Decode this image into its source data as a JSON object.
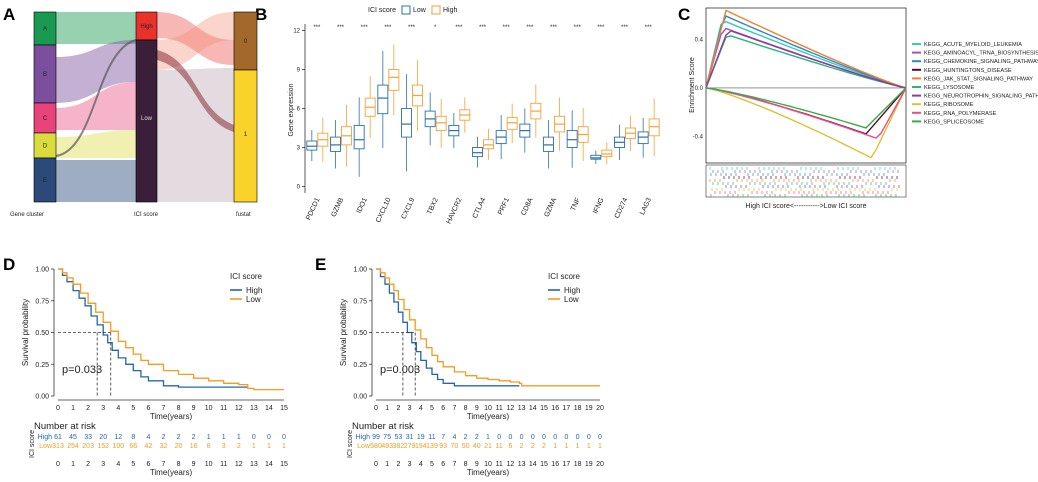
{
  "panels": {
    "a": "A",
    "b": "B",
    "c": "C",
    "d": "D",
    "e": "E"
  },
  "panel_a": {
    "axis_labels": [
      "Gene cluster",
      "ICI score",
      "fustat"
    ],
    "clusters": [
      "A",
      "B",
      "C",
      "D",
      "E"
    ],
    "cluster_colors": [
      "#1a9a50",
      "#7b4f9e",
      "#e8437a",
      "#d9dc3c",
      "#2b4a7a"
    ],
    "ici_levels": [
      "High",
      "Low"
    ],
    "ici_colors": [
      "#e8322a",
      "#3a1f3a"
    ],
    "fustat_levels": [
      "0",
      "1"
    ],
    "fustat_colors": [
      "#a2692a",
      "#f9d32a"
    ]
  },
  "chart_data": [
    {
      "type": "box",
      "panel": "B",
      "legend_title": "ICI score",
      "legend": [
        "Low",
        "High"
      ],
      "series_colors": {
        "Low": "#2b6fb3",
        "High": "#f3a235"
      },
      "ylabel": "Gene expression",
      "yticks": [
        0,
        3,
        6,
        9,
        12
      ],
      "ylim": [
        -0.5,
        12.5
      ],
      "categories": [
        "PDCD1",
        "GZMB",
        "IDO1",
        "CXCL10",
        "CXCL9",
        "TBX2",
        "HAVCR2",
        "CTLA4",
        "PRF1",
        "CD8A",
        "GZMA",
        "TNF",
        "IFNG",
        "CD274",
        "LAG3"
      ],
      "significance": [
        "***",
        "***",
        "***",
        "***",
        "***",
        "*",
        "***",
        "***",
        "***",
        "***",
        "***",
        "***",
        "***",
        "***",
        "***"
      ],
      "low_medians": [
        3.1,
        3.2,
        3.6,
        6.8,
        4.8,
        5.2,
        4.3,
        2.6,
        3.8,
        4.3,
        3.2,
        3.6,
        2.2,
        3.4,
        3.8
      ],
      "low_q1": [
        2.8,
        2.7,
        2.9,
        5.6,
        3.8,
        4.6,
        3.9,
        2.3,
        3.3,
        3.8,
        2.7,
        3.0,
        2.1,
        3.0,
        3.3
      ],
      "low_q3": [
        3.5,
        3.8,
        4.7,
        7.8,
        6.0,
        5.8,
        4.7,
        3.0,
        4.3,
        4.8,
        3.8,
        4.3,
        2.4,
        3.8,
        4.2
      ],
      "high_medians": [
        3.6,
        3.9,
        6.1,
        8.4,
        7.0,
        4.9,
        5.5,
        3.2,
        4.9,
        5.8,
        4.8,
        4.0,
        2.5,
        4.1,
        4.6
      ],
      "high_q1": [
        3.1,
        3.2,
        5.4,
        7.4,
        6.2,
        4.3,
        5.1,
        2.9,
        4.4,
        5.2,
        4.2,
        3.4,
        2.3,
        3.7,
        3.9
      ],
      "high_q3": [
        4.1,
        4.6,
        6.8,
        9.0,
        7.8,
        5.4,
        5.9,
        3.6,
        5.3,
        6.4,
        5.4,
        4.6,
        2.8,
        4.5,
        5.2
      ]
    },
    {
      "type": "line",
      "panel": "C",
      "ylabel": "Enrichment Score",
      "yticks": [
        -0.4,
        0.0,
        0.4
      ],
      "ylim": [
        -0.62,
        0.66
      ],
      "bottom_label": "High ICI score<----------->Low ICI score",
      "series": [
        {
          "name": "KEGG_ACUTE_MYELOID_LEUKEMIA",
          "color": "#3ec6c6",
          "peak": 0.56
        },
        {
          "name": "KEGG_AMINOACYL_TRNA_BIOSYNTHESIS",
          "color": "#9b59b6",
          "peak": 0.5
        },
        {
          "name": "KEGG_CHEMOKINE_SIGNALING_PATHWAY",
          "color": "#2e8bc0",
          "peak": 0.6
        },
        {
          "name": "KEGG_HUNTINGTONS_DISEASE",
          "color": "#5a0a2a",
          "peak": -0.38
        },
        {
          "name": "KEGG_JAK_STAT_SIGNALING_PATHWAY",
          "color": "#f08030",
          "peak": 0.64
        },
        {
          "name": "KEGG_LYSOSOME",
          "color": "#2bb673",
          "peak": 0.44
        },
        {
          "name": "KEGG_NEUROTROPHIN_SIGNALING_PATHWAY",
          "color": "#8e3a9e",
          "peak": 0.48
        },
        {
          "name": "KEGG_RIBOSOME",
          "color": "#d4c43a",
          "peak": -0.58
        },
        {
          "name": "KEGG_RNA_POLYMERASE",
          "color": "#ee4b8a",
          "peak": -0.42
        },
        {
          "name": "KEGG_SPLICEOSOME",
          "color": "#39a94a",
          "peak": -0.33
        }
      ]
    },
    {
      "type": "line",
      "panel": "D",
      "xlabel": "Time(years)",
      "ylabel": "Survival probability",
      "xticks": [
        0,
        1,
        2,
        3,
        4,
        5,
        6,
        7,
        8,
        9,
        10,
        11,
        12,
        13,
        14,
        15
      ],
      "yticks": [
        "0.00",
        "0.25",
        "0.50",
        "0.75",
        "1.00"
      ],
      "xlim": [
        0,
        15
      ],
      "ylim": [
        0,
        1
      ],
      "legend_title": "ICI score",
      "pvalue": "p=0.033",
      "series": [
        {
          "name": "High",
          "color": "#2565ae",
          "x": [
            0,
            0.3,
            0.6,
            1,
            1.4,
            1.8,
            2.2,
            2.6,
            3,
            3.3,
            3.6,
            4,
            4.5,
            5,
            5.5,
            6,
            7,
            8,
            9,
            10,
            11,
            12,
            12.6
          ],
          "y": [
            1,
            0.95,
            0.9,
            0.83,
            0.77,
            0.71,
            0.63,
            0.56,
            0.48,
            0.42,
            0.36,
            0.3,
            0.25,
            0.2,
            0.15,
            0.12,
            0.08,
            0.07,
            0.07,
            0.07,
            0.07,
            0.07,
            0.07
          ]
        },
        {
          "name": "Low",
          "color": "#f39c1f",
          "x": [
            0,
            0.3,
            0.6,
            1,
            1.5,
            2,
            2.5,
            3,
            3.5,
            4,
            4.5,
            5,
            5.5,
            6,
            7,
            8,
            9,
            10,
            11,
            12,
            12.6,
            13,
            15
          ],
          "y": [
            1,
            0.97,
            0.93,
            0.88,
            0.81,
            0.73,
            0.66,
            0.58,
            0.51,
            0.43,
            0.38,
            0.33,
            0.28,
            0.25,
            0.2,
            0.17,
            0.14,
            0.12,
            0.1,
            0.09,
            0.06,
            0.05,
            0.05
          ]
        }
      ],
      "risk_table": {
        "title": "Number at risk",
        "ylabel": "ICI score",
        "rows": [
          {
            "label": "High",
            "color": "#2565ae",
            "values": [
              "61",
              "45",
              "33",
              "20",
              "12",
              "8",
              "4",
              "2",
              "2",
              "2",
              "1",
              "1",
              "1",
              "0",
              "0",
              "0"
            ]
          },
          {
            "label": "Low",
            "color": "#f39c1f",
            "values": [
              "313",
              "254",
              "203",
              "152",
              "100",
              "66",
              "42",
              "32",
              "20",
              "16",
              "8",
              "3",
              "2",
              "1",
              "1",
              "1"
            ]
          }
        ]
      }
    },
    {
      "type": "line",
      "panel": "E",
      "xlabel": "Time(years)",
      "ylabel": "Survival probability",
      "xticks": [
        0,
        1,
        2,
        3,
        4,
        5,
        6,
        7,
        8,
        9,
        10,
        11,
        12,
        13,
        14,
        15,
        16,
        17,
        18,
        19,
        20
      ],
      "yticks": [
        "0.00",
        "0.25",
        "0.50",
        "0.75",
        "1.00"
      ],
      "xlim": [
        0,
        20
      ],
      "ylim": [
        0,
        1
      ],
      "legend_title": "ICI score",
      "pvalue": "p=0.003",
      "series": [
        {
          "name": "High",
          "color": "#2565ae",
          "x": [
            0,
            0.4,
            0.8,
            1.2,
            1.6,
            2,
            2.4,
            2.8,
            3.2,
            3.6,
            4,
            4.5,
            5,
            5.5,
            6,
            7,
            8,
            9,
            10,
            11,
            12,
            12.8
          ],
          "y": [
            1,
            0.94,
            0.88,
            0.81,
            0.74,
            0.66,
            0.58,
            0.5,
            0.42,
            0.35,
            0.28,
            0.22,
            0.17,
            0.13,
            0.1,
            0.08,
            0.08,
            0.08,
            0.08,
            0.08,
            0.08,
            0.08
          ]
        },
        {
          "name": "Low",
          "color": "#f39c1f",
          "x": [
            0,
            0.4,
            0.8,
            1.2,
            1.6,
            2,
            2.5,
            3,
            3.5,
            4,
            4.5,
            5,
            5.5,
            6,
            7,
            8,
            9,
            10,
            11,
            12,
            12.8,
            13,
            20
          ],
          "y": [
            1,
            0.97,
            0.93,
            0.88,
            0.83,
            0.76,
            0.68,
            0.6,
            0.52,
            0.45,
            0.38,
            0.32,
            0.27,
            0.23,
            0.19,
            0.16,
            0.14,
            0.13,
            0.12,
            0.11,
            0.1,
            0.08,
            0.08
          ]
        }
      ],
      "risk_table": {
        "title": "Number at risk",
        "ylabel": "ICI score",
        "rows": [
          {
            "label": "High",
            "color": "#2565ae",
            "values": [
              "99",
              "75",
              "53",
              "31",
              "19",
              "11",
              "7",
              "4",
              "2",
              "2",
              "1",
              "0",
              "0",
              "0",
              "0",
              "0",
              "0",
              "0",
              "0",
              "0",
              "0"
            ]
          },
          {
            "label": "Low",
            "color": "#f39c1f",
            "values": [
              "580",
              "493",
              "382",
              "279",
              "194",
              "139",
              "93",
              "70",
              "50",
              "40",
              "21",
              "11",
              "6",
              "2",
              "2",
              "2",
              "1",
              "1",
              "1",
              "1",
              "1"
            ]
          }
        ]
      }
    }
  ]
}
